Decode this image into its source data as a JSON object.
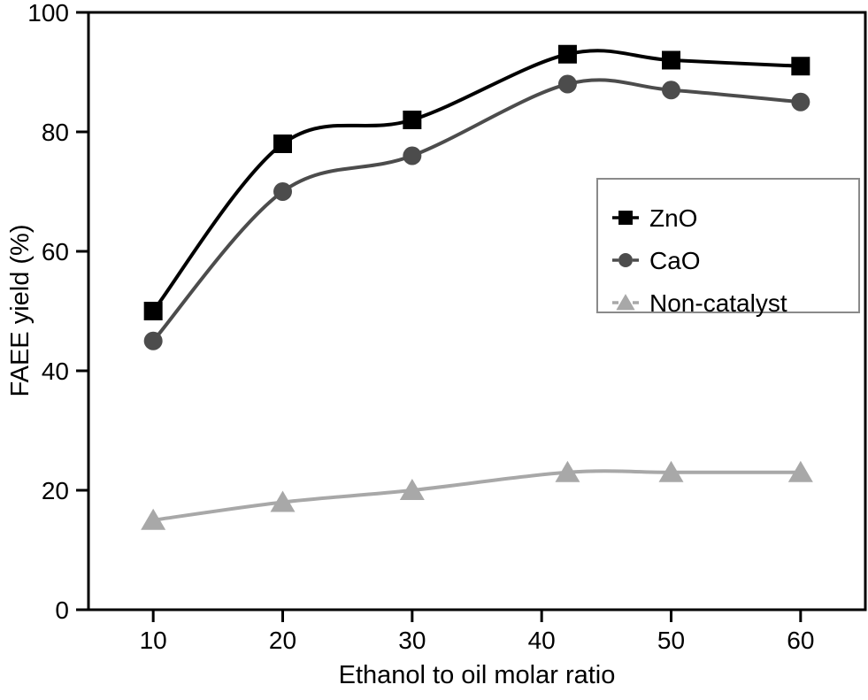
{
  "chart_data": {
    "type": "line",
    "title": "",
    "xlabel": "Ethanol to oil molar ratio",
    "ylabel": "FAEE yield (%)",
    "x": [
      10,
      20,
      30,
      42,
      50,
      60
    ],
    "series": [
      {
        "name": "ZnO",
        "marker": "square",
        "color": "#000000",
        "values": [
          50,
          78,
          82,
          93,
          92,
          91
        ]
      },
      {
        "name": "CaO",
        "marker": "circle",
        "color": "#4c4c4c",
        "values": [
          45,
          70,
          76,
          88,
          87,
          85
        ]
      },
      {
        "name": "Non-catalyst",
        "marker": "triangle",
        "color": "#a8a8a8",
        "values": [
          15,
          18,
          20,
          23,
          23,
          23
        ]
      }
    ],
    "xticks": [
      10,
      20,
      30,
      40,
      50,
      60
    ],
    "yticks": [
      0,
      20,
      40,
      60,
      80,
      100
    ],
    "xlim": [
      5,
      65
    ],
    "ylim": [
      0,
      100
    ],
    "grid": false,
    "legend": {
      "position": "upper-right",
      "border_color": "#8a8a8a"
    },
    "frame_color": "#000000",
    "background": "#ffffff"
  }
}
